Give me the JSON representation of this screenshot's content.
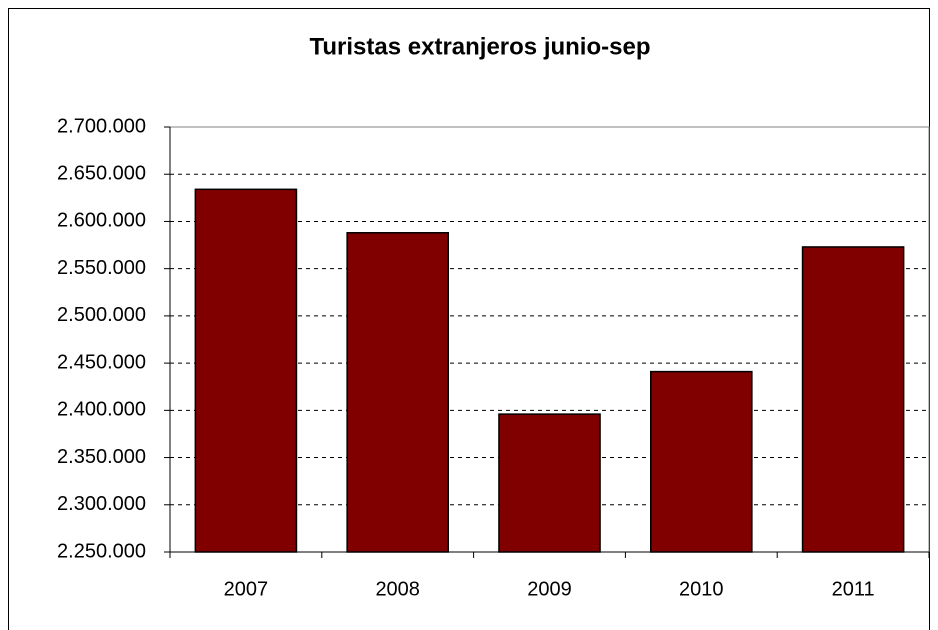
{
  "chart_data": {
    "type": "bar",
    "title": "Turistas extranjeros junio-sep",
    "categories": [
      "2007",
      "2008",
      "2009",
      "2010",
      "2011"
    ],
    "values": [
      2634000,
      2588000,
      2396000,
      2441000,
      2573000
    ],
    "color": "#800000",
    "ylim": [
      2250000,
      2700000
    ],
    "yticks": [
      {
        "value": 2250000,
        "label": "2.250.000"
      },
      {
        "value": 2300000,
        "label": "2.300.000"
      },
      {
        "value": 2350000,
        "label": "2.350.000"
      },
      {
        "value": 2400000,
        "label": "2.400.000"
      },
      {
        "value": 2450000,
        "label": "2.450.000"
      },
      {
        "value": 2500000,
        "label": "2.500.000"
      },
      {
        "value": 2550000,
        "label": "2.550.000"
      },
      {
        "value": 2600000,
        "label": "2.600.000"
      },
      {
        "value": 2650000,
        "label": "2.650.000"
      },
      {
        "value": 2700000,
        "label": "2.700.000"
      }
    ],
    "grid": true
  }
}
